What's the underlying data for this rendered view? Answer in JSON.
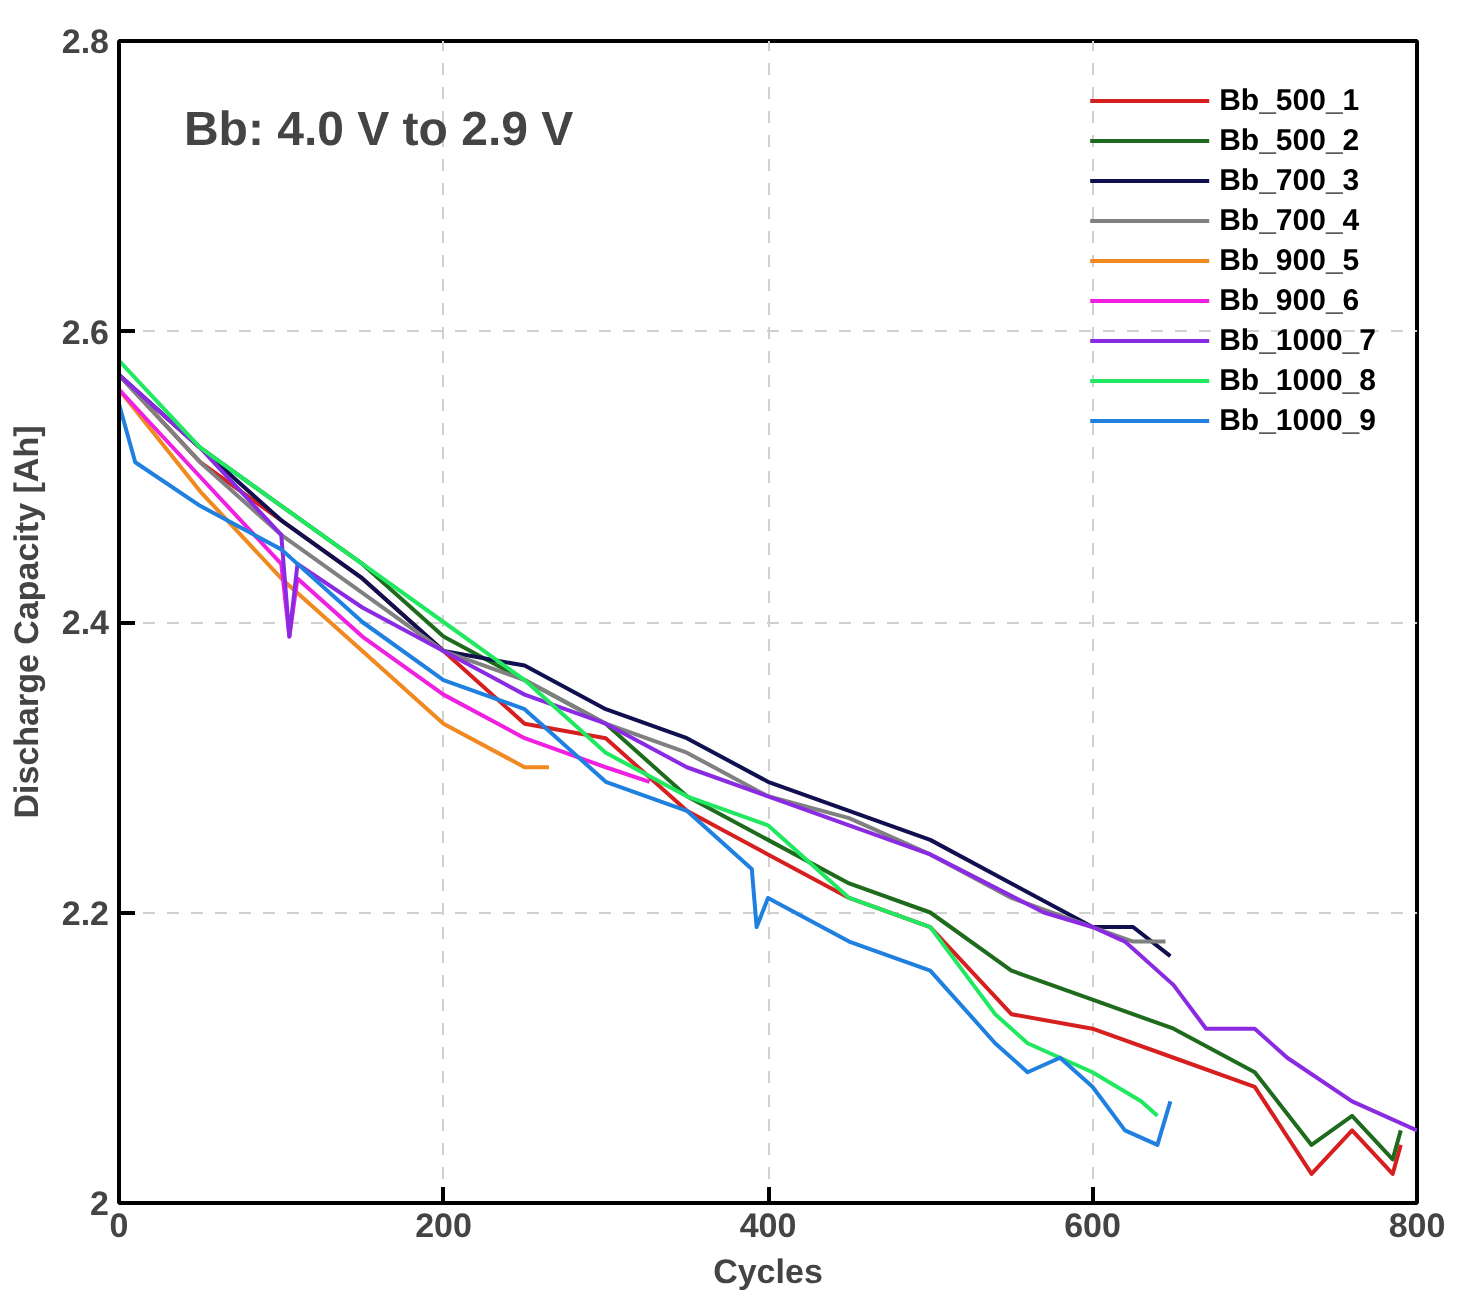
{
  "chart_data": {
    "type": "line",
    "xlabel": "Cycles",
    "ylabel": "Discharge Capacity [Ah]",
    "annotations": [
      "Bb: 4.0 V to 2.9 V"
    ],
    "xlim": [
      0,
      800
    ],
    "ylim": [
      2.0,
      2.8
    ],
    "xticks": [
      0,
      200,
      400,
      600,
      800
    ],
    "yticks": [
      2,
      2.2,
      2.4,
      2.6,
      2.8
    ],
    "grid": true,
    "legend": "top right",
    "line_style": "solid",
    "marker": "none",
    "series": [
      {
        "name": "Bb_500_1",
        "color": "#d62020",
        "x": [
          0,
          50,
          100,
          150,
          200,
          250,
          300,
          350,
          400,
          450,
          500,
          550,
          600,
          650,
          700,
          735,
          760,
          785,
          790
        ],
        "values": [
          2.57,
          2.51,
          2.47,
          2.43,
          2.38,
          2.33,
          2.32,
          2.27,
          2.24,
          2.21,
          2.19,
          2.13,
          2.12,
          2.1,
          2.08,
          2.02,
          2.05,
          2.02,
          2.04
        ]
      },
      {
        "name": "Bb_500_2",
        "color": "#1e6b1e",
        "x": [
          0,
          50,
          100,
          150,
          200,
          250,
          300,
          350,
          400,
          450,
          500,
          550,
          600,
          650,
          700,
          735,
          760,
          785,
          790
        ],
        "values": [
          2.57,
          2.52,
          2.48,
          2.44,
          2.39,
          2.36,
          2.33,
          2.28,
          2.25,
          2.22,
          2.2,
          2.16,
          2.14,
          2.12,
          2.09,
          2.04,
          2.06,
          2.03,
          2.05
        ]
      },
      {
        "name": "Bb_700_3",
        "color": "#101050",
        "x": [
          0,
          50,
          100,
          150,
          200,
          250,
          300,
          350,
          400,
          450,
          500,
          550,
          600,
          625,
          648
        ],
        "values": [
          2.57,
          2.52,
          2.47,
          2.43,
          2.38,
          2.37,
          2.34,
          2.32,
          2.29,
          2.27,
          2.25,
          2.22,
          2.19,
          2.19,
          2.17
        ]
      },
      {
        "name": "Bb_700_4",
        "color": "#808080",
        "x": [
          0,
          50,
          100,
          150,
          200,
          250,
          300,
          350,
          400,
          450,
          500,
          550,
          600,
          625,
          645
        ],
        "values": [
          2.57,
          2.51,
          2.46,
          2.42,
          2.38,
          2.36,
          2.33,
          2.31,
          2.28,
          2.265,
          2.24,
          2.21,
          2.19,
          2.18,
          2.18
        ]
      },
      {
        "name": "Bb_900_5",
        "color": "#f08a20",
        "x": [
          0,
          50,
          100,
          150,
          200,
          250,
          265
        ],
        "values": [
          2.56,
          2.49,
          2.43,
          2.38,
          2.33,
          2.3,
          2.3
        ]
      },
      {
        "name": "Bb_900_6",
        "color": "#f020e0",
        "x": [
          0,
          50,
          100,
          105,
          110,
          150,
          200,
          250,
          300,
          327
        ],
        "values": [
          2.56,
          2.5,
          2.44,
          2.39,
          2.43,
          2.39,
          2.35,
          2.32,
          2.3,
          2.29
        ]
      },
      {
        "name": "Bb_1000_7",
        "color": "#8a2be2",
        "x": [
          0,
          50,
          100,
          105,
          110,
          150,
          200,
          250,
          300,
          350,
          400,
          450,
          500,
          570,
          600,
          620,
          650,
          670,
          700,
          720,
          760,
          800
        ],
        "values": [
          2.57,
          2.52,
          2.46,
          2.39,
          2.44,
          2.41,
          2.38,
          2.35,
          2.33,
          2.3,
          2.28,
          2.26,
          2.24,
          2.2,
          2.19,
          2.18,
          2.15,
          2.12,
          2.12,
          2.1,
          2.07,
          2.05
        ]
      },
      {
        "name": "Bb_1000_8",
        "color": "#20e860",
        "x": [
          0,
          50,
          100,
          150,
          200,
          250,
          300,
          350,
          400,
          450,
          500,
          520,
          540,
          560,
          600,
          630,
          640
        ],
        "values": [
          2.58,
          2.52,
          2.48,
          2.44,
          2.4,
          2.36,
          2.31,
          2.28,
          2.26,
          2.21,
          2.19,
          2.16,
          2.13,
          2.11,
          2.09,
          2.07,
          2.06
        ]
      },
      {
        "name": "Bb_1000_9",
        "color": "#2080e0",
        "x": [
          0,
          10,
          50,
          100,
          150,
          200,
          250,
          300,
          350,
          390,
          393,
          400,
          450,
          500,
          540,
          560,
          580,
          600,
          620,
          640,
          648
        ],
        "values": [
          2.55,
          2.51,
          2.48,
          2.45,
          2.4,
          2.36,
          2.34,
          2.29,
          2.27,
          2.23,
          2.19,
          2.21,
          2.18,
          2.16,
          2.11,
          2.09,
          2.1,
          2.08,
          2.05,
          2.04,
          2.07
        ]
      }
    ]
  }
}
